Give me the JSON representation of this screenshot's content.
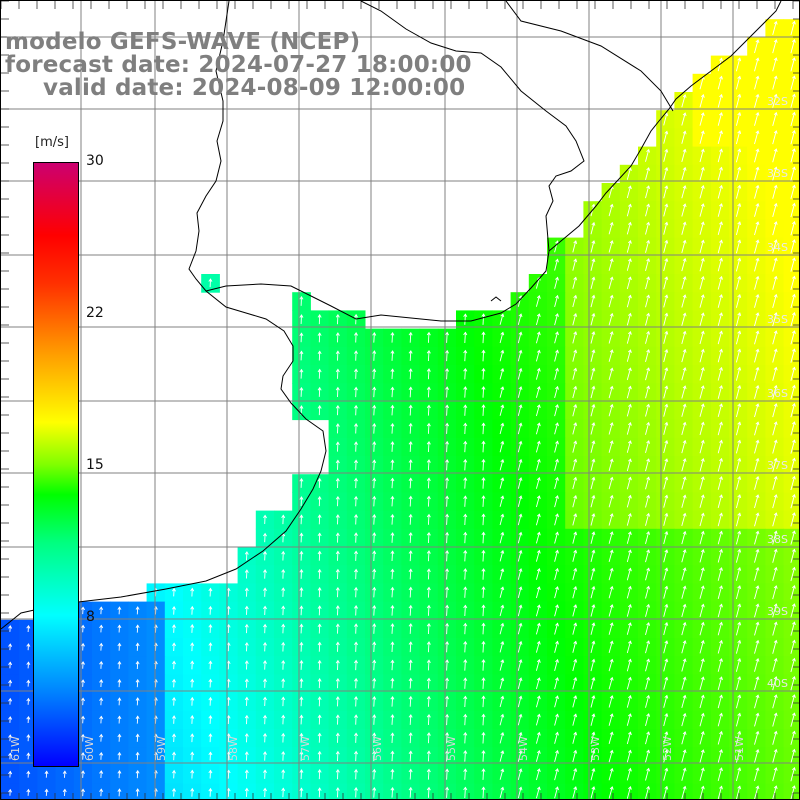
{
  "title": {
    "model": "modelo GEFS-WAVE (NCEP)",
    "forecast": "forecast date: 2024-07-27 18:00:00",
    "valid": "valid date: 2024-08-09 12:00:00"
  },
  "colorbar": {
    "unit": "[m/s]",
    "min": 0,
    "max": 30,
    "ticks": [
      "30",
      "22",
      "15",
      "8"
    ]
  },
  "lat_labels": [
    "32S",
    "33S",
    "34S",
    "35S",
    "36S",
    "37S",
    "38S",
    "39S",
    "40S"
  ],
  "lon_labels": [
    "61W",
    "60W",
    "59W",
    "58W",
    "57W",
    "56W",
    "55W",
    "54W",
    "53W",
    "52W",
    "51W"
  ],
  "colors": {
    "ocean_low": "#0030ff",
    "ocean_mid": "#00ffff",
    "ocean_high": "#00ff00",
    "ocean_peak": "#ffff00",
    "grid": "#808080",
    "coast": "#000000",
    "arrows": "#ffffff"
  }
}
